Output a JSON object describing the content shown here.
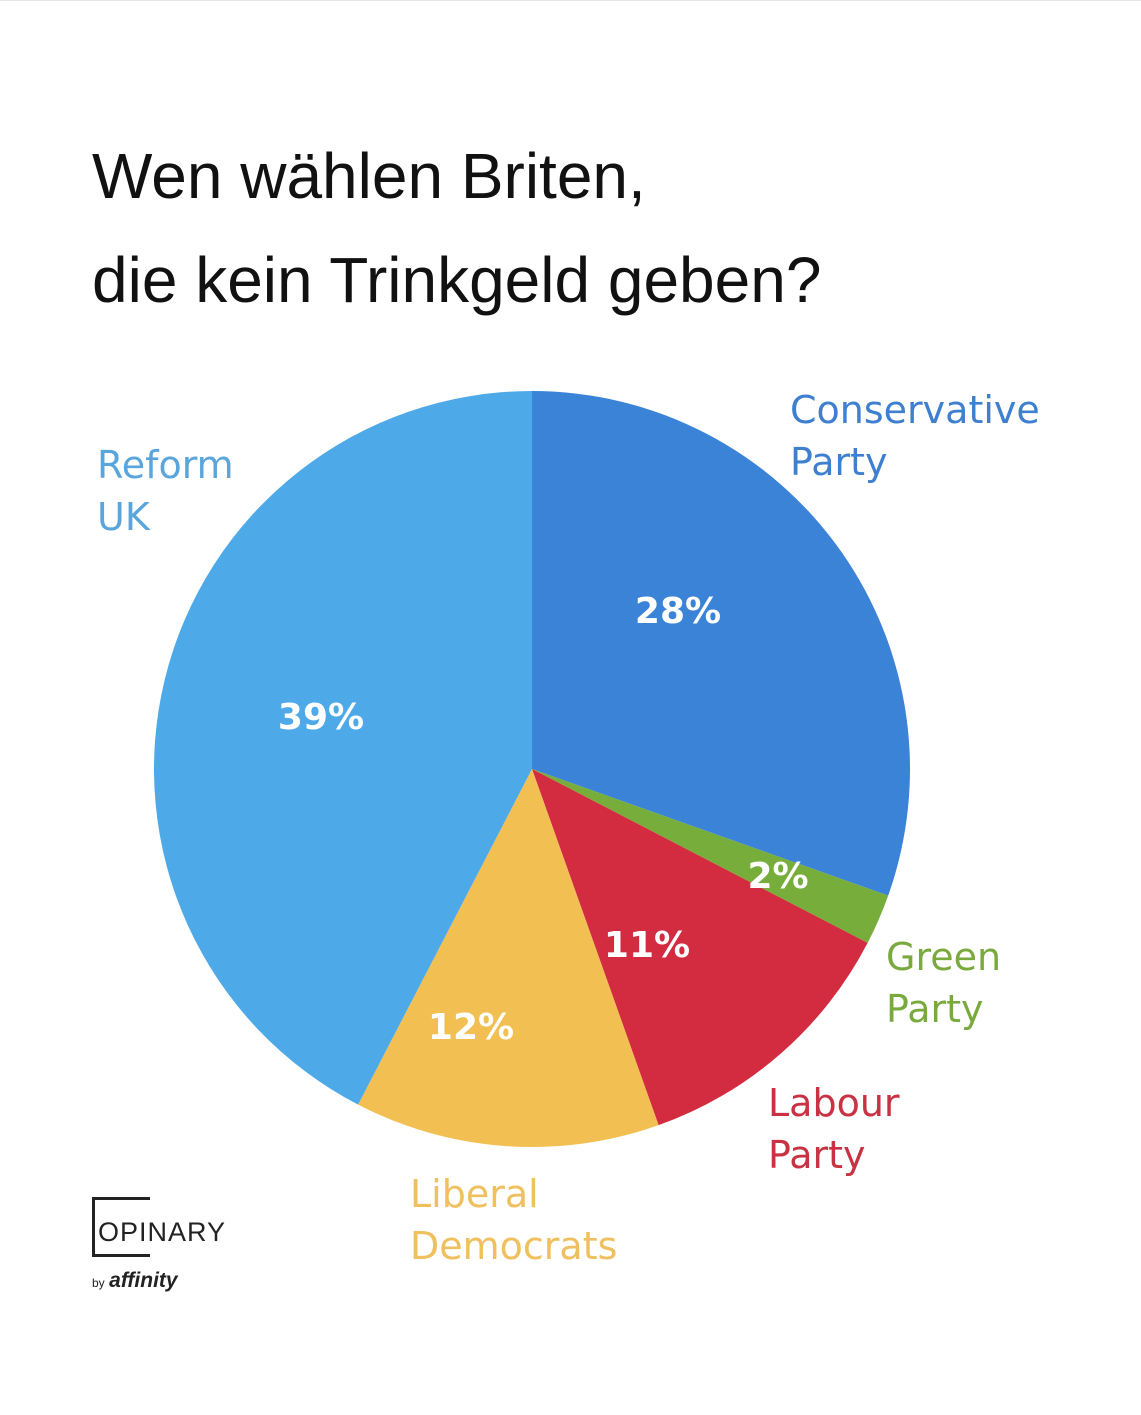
{
  "title_lines": [
    "Wen wählen Briten,",
    "die kein Trinkgeld geben?"
  ],
  "chart_data": {
    "type": "pie",
    "title": "Wen wählen Briten, die kein Trinkgeld geben?",
    "slices": [
      {
        "label": [
          "Conservative",
          "Party"
        ],
        "value": 28,
        "pct_text": "28%",
        "color": "#3b83d6",
        "label_color": "#3f7fd0"
      },
      {
        "label": [
          "Green",
          "Party"
        ],
        "value": 2,
        "pct_text": "2%",
        "color": "#77ad3a",
        "label_color": "#7aaa3e"
      },
      {
        "label": [
          "Labour",
          "Party"
        ],
        "value": 11,
        "pct_text": "11%",
        "color": "#d32b40",
        "label_color": "#c83243"
      },
      {
        "label": [
          "Liberal",
          "Democrats"
        ],
        "value": 12,
        "pct_text": "12%",
        "color": "#f2bf52",
        "label_color": "#efc05d"
      },
      {
        "label": [
          "Reform",
          "UK"
        ],
        "value": 39,
        "pct_text": "39%",
        "color": "#4ea9e8",
        "label_color": "#5aa6dc"
      }
    ]
  },
  "logo": {
    "word": "OPINARY",
    "by": "by",
    "brand": "affinity"
  }
}
